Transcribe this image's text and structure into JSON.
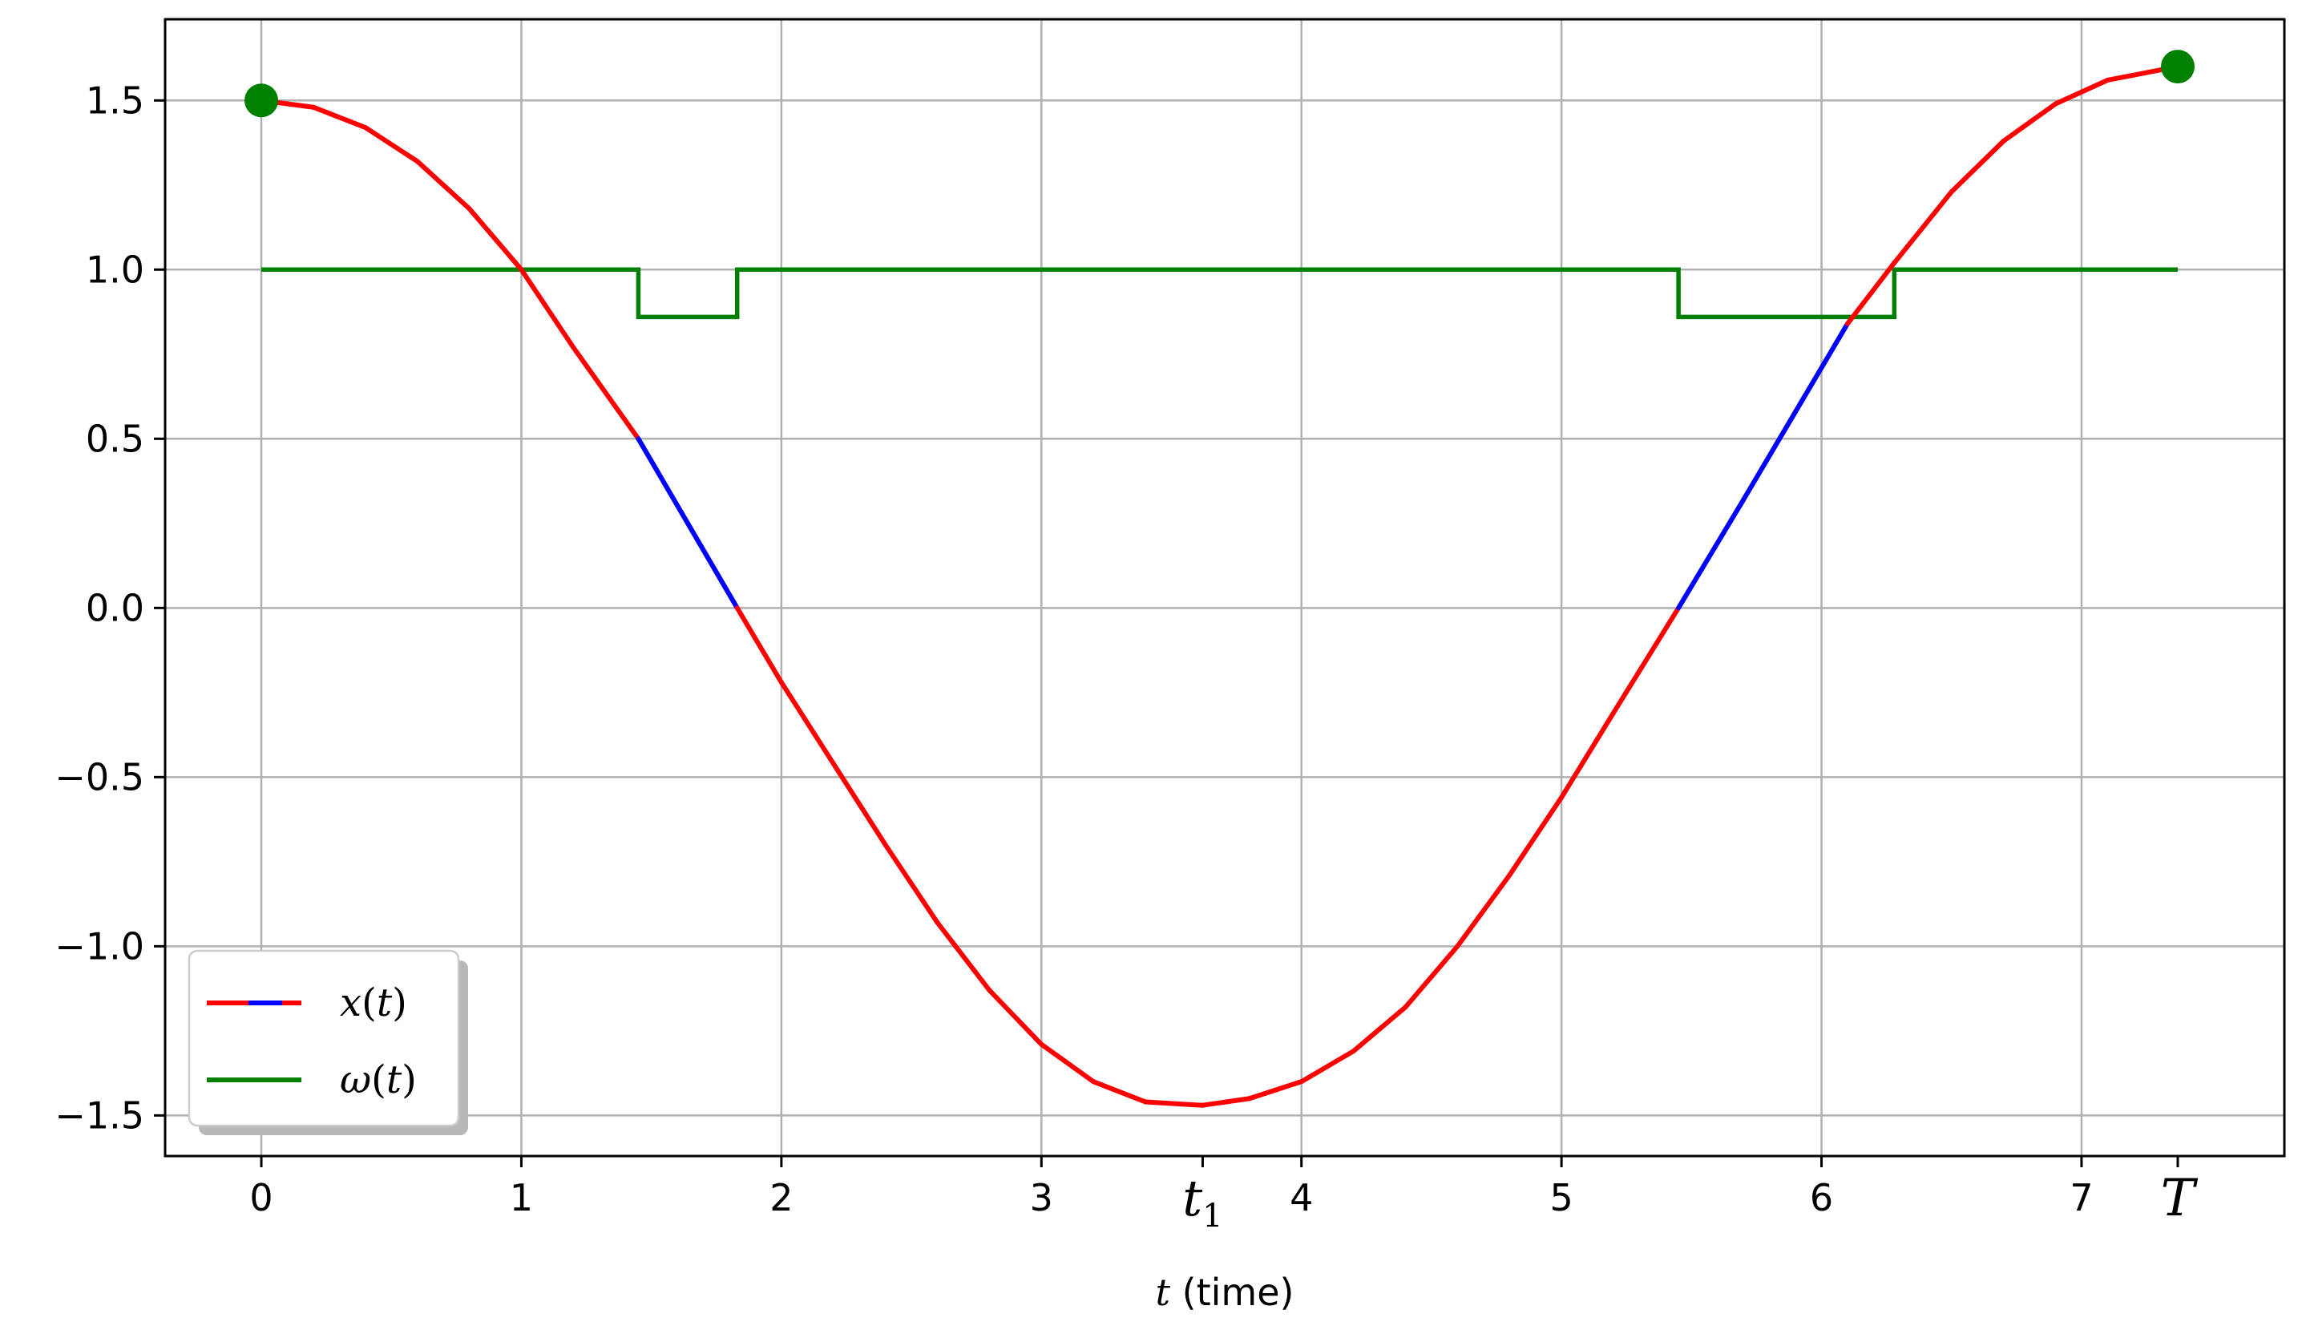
{
  "chart_data": {
    "type": "line",
    "title": "",
    "xlabel": "t (time)",
    "ylabel": "",
    "xlim": [
      -0.37,
      7.78
    ],
    "ylim": [
      -1.62,
      1.74
    ],
    "grid": true,
    "legend_position": "lower-left",
    "x_ticks": [
      {
        "value": 0,
        "label": "0"
      },
      {
        "value": 1,
        "label": "1"
      },
      {
        "value": 2,
        "label": "2"
      },
      {
        "value": 3,
        "label": "3"
      },
      {
        "value": 3.62,
        "label": "t1"
      },
      {
        "value": 4,
        "label": "4"
      },
      {
        "value": 5,
        "label": "5"
      },
      {
        "value": 6,
        "label": "6"
      },
      {
        "value": 7,
        "label": "7"
      },
      {
        "value": 7.37,
        "label": "T"
      }
    ],
    "y_ticks": [
      {
        "value": 1.5,
        "label": "1.5"
      },
      {
        "value": 1.0,
        "label": "1.0"
      },
      {
        "value": 0.5,
        "label": "0.5"
      },
      {
        "value": 0.0,
        "label": "0.0"
      },
      {
        "value": -0.5,
        "label": "−0.5"
      },
      {
        "value": -1.0,
        "label": "−1.0"
      },
      {
        "value": -1.5,
        "label": "−1.5"
      }
    ],
    "series": [
      {
        "name": "x(t)",
        "color": "#ff0000",
        "alt_color": "#0000ff",
        "points": [
          [
            0.0,
            1.5
          ],
          [
            0.2,
            1.48
          ],
          [
            0.4,
            1.42
          ],
          [
            0.6,
            1.32
          ],
          [
            0.8,
            1.18
          ],
          [
            1.0,
            1.0
          ],
          [
            1.2,
            0.77
          ],
          [
            1.45,
            0.5
          ],
          [
            1.64,
            0.25
          ],
          [
            1.83,
            0.0
          ],
          [
            2.0,
            -0.22
          ],
          [
            2.2,
            -0.46
          ],
          [
            2.4,
            -0.7
          ],
          [
            2.6,
            -0.93
          ],
          [
            2.8,
            -1.13
          ],
          [
            3.0,
            -1.29
          ],
          [
            3.2,
            -1.4
          ],
          [
            3.4,
            -1.46
          ],
          [
            3.62,
            -1.47
          ],
          [
            3.8,
            -1.45
          ],
          [
            4.0,
            -1.4
          ],
          [
            4.2,
            -1.31
          ],
          [
            4.4,
            -1.18
          ],
          [
            4.6,
            -1.0
          ],
          [
            4.8,
            -0.79
          ],
          [
            5.0,
            -0.56
          ],
          [
            5.2,
            -0.31
          ],
          [
            5.45,
            0.0
          ],
          [
            5.7,
            0.32
          ],
          [
            5.9,
            0.58
          ],
          [
            6.1,
            0.84
          ],
          [
            6.28,
            1.02
          ],
          [
            6.5,
            1.23
          ],
          [
            6.7,
            1.38
          ],
          [
            6.9,
            1.49
          ],
          [
            7.1,
            1.56
          ],
          [
            7.37,
            1.6
          ]
        ],
        "highlight_intervals": [
          [
            1.45,
            1.83
          ],
          [
            5.45,
            6.1
          ]
        ]
      },
      {
        "name": "ω(t)",
        "color": "#008000",
        "points": [
          [
            0.0,
            1.0
          ],
          [
            1.45,
            1.0
          ],
          [
            1.45,
            0.86
          ],
          [
            1.83,
            0.86
          ],
          [
            1.83,
            1.0
          ],
          [
            5.45,
            1.0
          ],
          [
            5.45,
            0.86
          ],
          [
            6.28,
            0.86
          ],
          [
            6.28,
            1.0
          ],
          [
            7.37,
            1.0
          ]
        ]
      }
    ],
    "markers": [
      {
        "x": 0.0,
        "y": 1.5,
        "color": "#008000"
      },
      {
        "x": 7.37,
        "y": 1.6,
        "color": "#008000"
      }
    ]
  }
}
